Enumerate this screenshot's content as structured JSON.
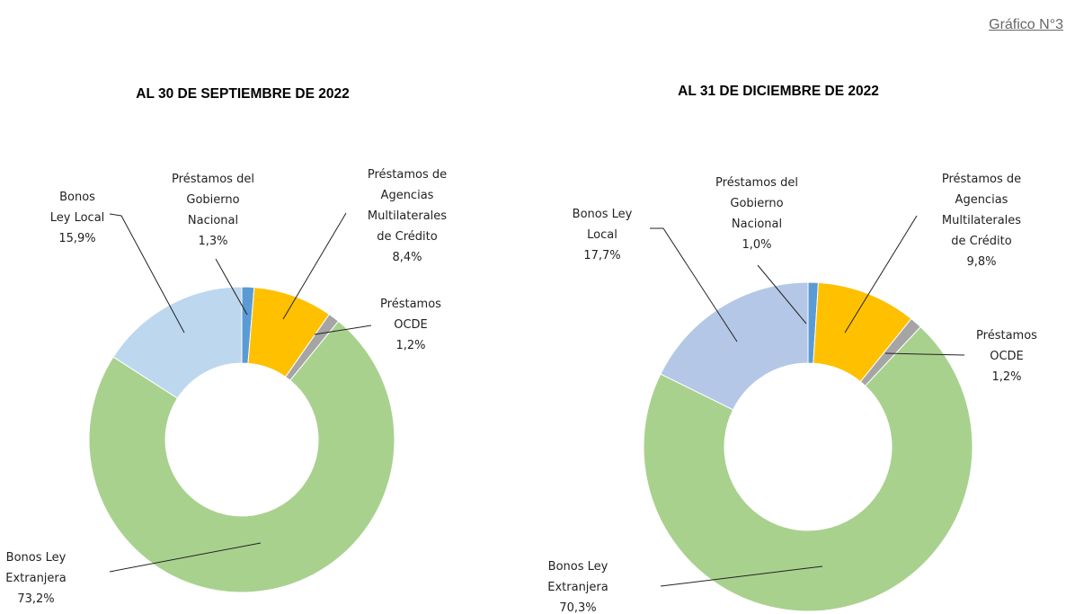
{
  "figure_label": "Gráfico N°3",
  "chart_data": [
    {
      "type": "donut",
      "title": "AL 30 DE SEPTIEMBRE DE 2022",
      "categories": [
        "Préstamos del Gobierno Nacional",
        "Préstamos de Agencias Multilaterales de Crédito",
        "Préstamos OCDE",
        "Bonos Ley Extranjera",
        "Bonos Ley Local"
      ],
      "values": [
        1.3,
        8.4,
        1.2,
        73.2,
        15.9
      ],
      "value_labels": [
        "1,3%",
        "8,4%",
        "1,2%",
        "73,2%",
        "15,9%"
      ],
      "colors": [
        "#5b9bd5",
        "#ffc000",
        "#a5a5a5",
        "#a9d18e",
        "#bdd7ee"
      ]
    },
    {
      "type": "donut",
      "title": "AL 31 DE DICIEMBRE DE 2022",
      "categories": [
        "Préstamos del Gobierno Nacional",
        "Préstamos de Agencias Multilaterales de Crédito",
        "Préstamos OCDE",
        "Bonos Ley Extranjera",
        "Bonos Ley Local"
      ],
      "values": [
        1.0,
        9.8,
        1.2,
        70.3,
        17.7
      ],
      "value_labels": [
        "1,0%",
        "9,8%",
        "1,2%",
        "70,3%",
        "17,7%"
      ],
      "colors": [
        "#5b9bd5",
        "#ffc000",
        "#a5a5a5",
        "#a9d18e",
        "#b4c7e7"
      ]
    }
  ]
}
